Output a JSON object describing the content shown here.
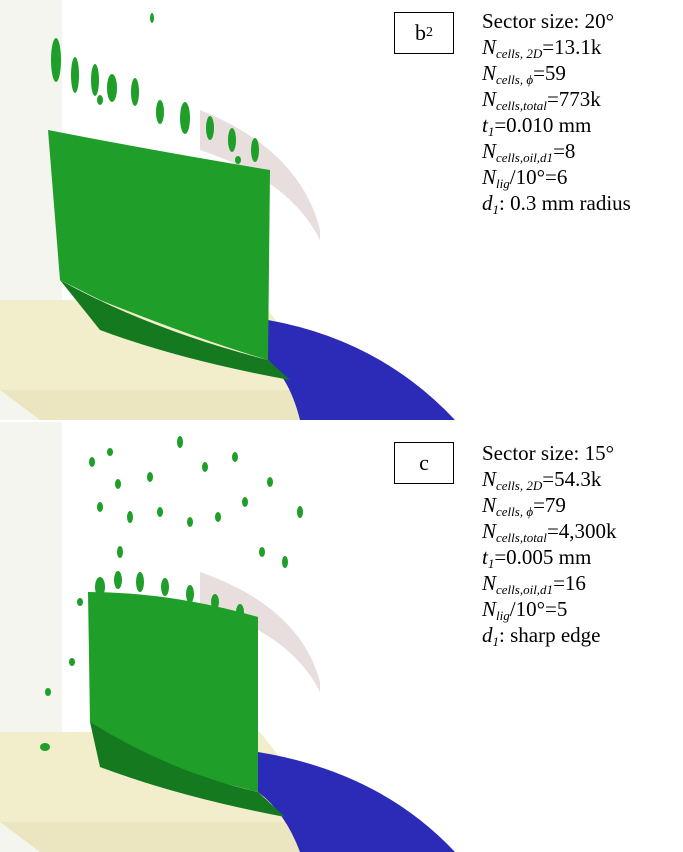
{
  "panels": [
    {
      "id": "b2",
      "label_main": "b",
      "label_sub": "2",
      "sector_size": "Sector size: 20°",
      "n_cells_2d_sub": "cells, 2D",
      "n_cells_2d_value": "=13.1k",
      "n_cells_phi_sub": "cells,",
      "n_cells_phi_value": "=59",
      "n_cells_total_sub": "cells,total",
      "n_cells_total_value": "=773k",
      "t1_value": "=0.010 mm",
      "n_cells_oil_sub": "cells,oil,d1",
      "n_cells_oil_value": "=8",
      "n_lig_value": "/10°=6",
      "d1_value": ": 0.3 mm radius"
    },
    {
      "id": "c",
      "label_main": "c",
      "label_sub": "",
      "sector_size": "Sector size: 15°",
      "n_cells_2d_sub": "cells, 2D",
      "n_cells_2d_value": "=54.3k",
      "n_cells_phi_sub": "cells,",
      "n_cells_phi_value": "=79",
      "n_cells_total_sub": "cells,total",
      "n_cells_total_value": "=4,300k",
      "t1_value": "=0.005 mm",
      "n_cells_oil_sub": "cells,oil,d1",
      "n_cells_oil_value": "=16",
      "n_lig_value": "/10°=5",
      "d1_value": ": sharp edge"
    }
  ],
  "symbols": {
    "N": "N",
    "t": "t",
    "d": "d",
    "one": "1",
    "lig": "lig",
    "phi": "ϕ"
  },
  "colors": {
    "oil_film": "#1f9e2a",
    "oil_film_dark": "#157a1f",
    "rotor_surface": "#2b2bb8",
    "wall_cream": "#f2eecb",
    "wall_pink": "#e8dede"
  }
}
